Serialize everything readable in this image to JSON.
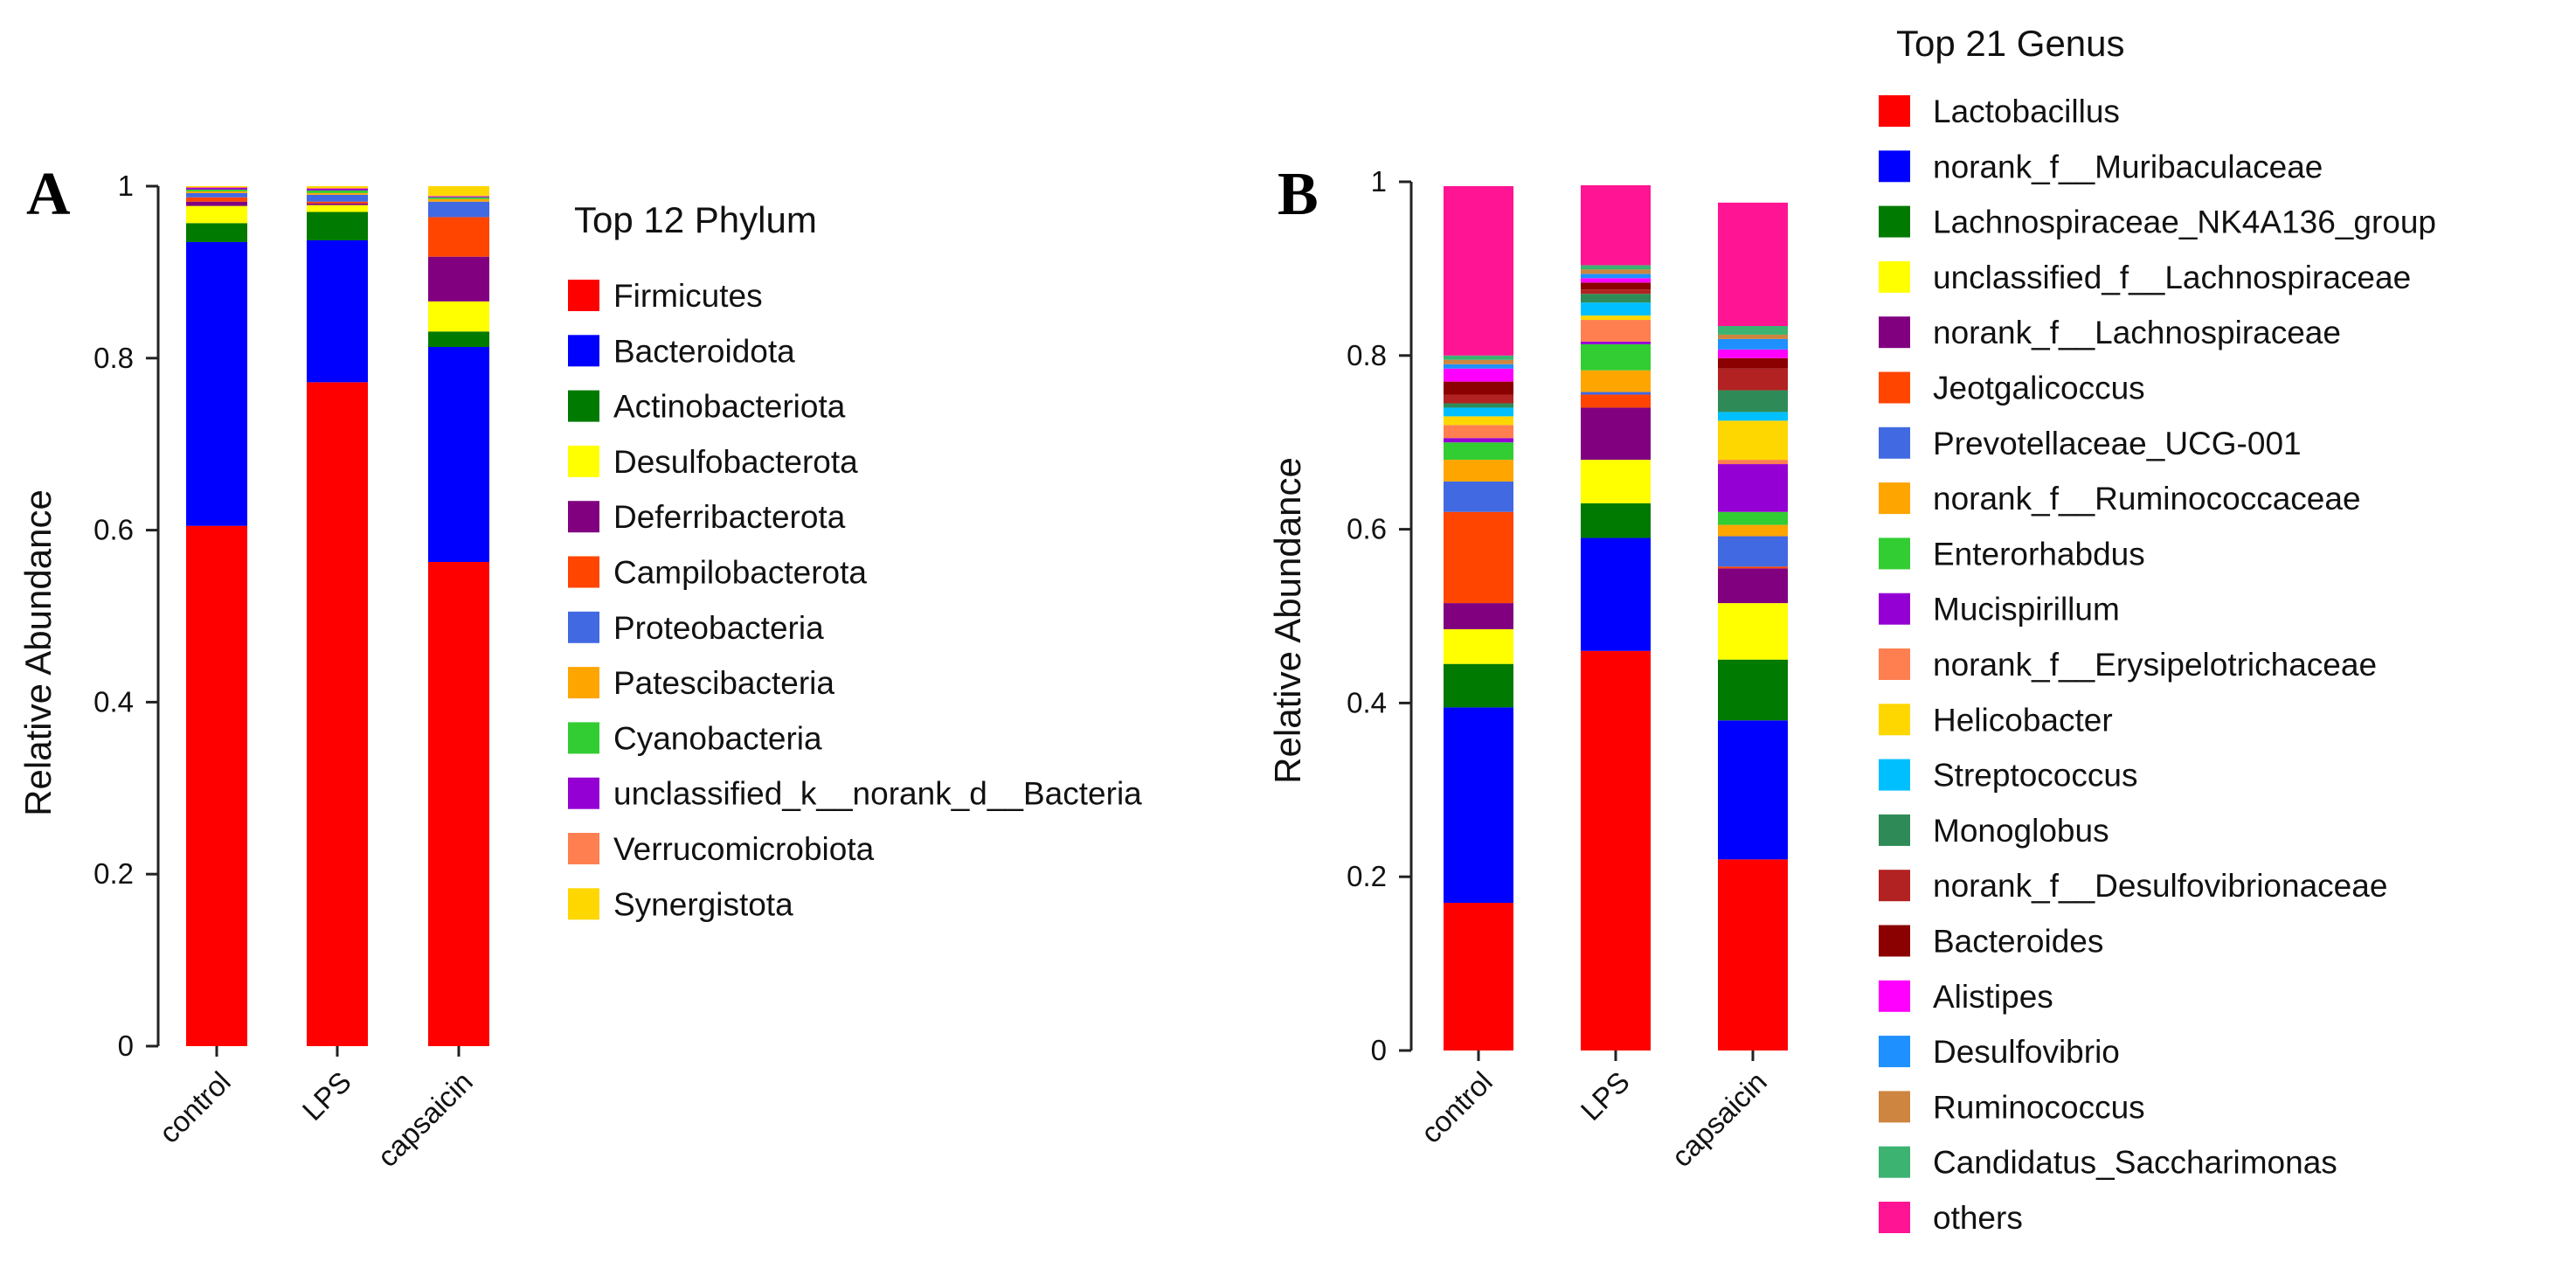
{
  "chart_data": [
    {
      "panel": "A",
      "type": "bar",
      "stacked": true,
      "title": "Top 12 Phylum",
      "xlabel": "",
      "ylabel": "Relative Abundance",
      "ylim": [
        0,
        1
      ],
      "yticks": [
        "0",
        "0.2",
        "0.4",
        "0.6",
        "0.8",
        "1"
      ],
      "categories": [
        "control",
        "LPS",
        "capsaicin"
      ],
      "series": [
        {
          "name": "Firmicutes",
          "color": "#FF0000",
          "values": [
            0.605,
            0.772,
            0.563
          ]
        },
        {
          "name": "Bacteroidota",
          "color": "#0000FF",
          "values": [
            0.33,
            0.165,
            0.25
          ]
        },
        {
          "name": "Actinobacteriota",
          "color": "#007A00",
          "values": [
            0.022,
            0.033,
            0.018
          ]
        },
        {
          "name": "Desulfobacterota",
          "color": "#FFFF00",
          "values": [
            0.02,
            0.008,
            0.035
          ]
        },
        {
          "name": "Deferribacterota",
          "color": "#800080",
          "values": [
            0.005,
            0.002,
            0.052
          ]
        },
        {
          "name": "Campilobacterota",
          "color": "#FF4500",
          "values": [
            0.005,
            0.002,
            0.046
          ]
        },
        {
          "name": "Proteobacteria",
          "color": "#4169E1",
          "values": [
            0.005,
            0.008,
            0.018
          ]
        },
        {
          "name": "Patescibacteria",
          "color": "#FFA500",
          "values": [
            0.002,
            0.002,
            0.003
          ]
        },
        {
          "name": "Cyanobacteria",
          "color": "#32CD32",
          "values": [
            0.002,
            0.003,
            0.002
          ]
        },
        {
          "name": "unclassified_k__norank_d__Bacteria",
          "color": "#9400D3",
          "values": [
            0.002,
            0.002,
            0.001
          ]
        },
        {
          "name": "Verrucomicrobiota",
          "color": "#FF7F50",
          "values": [
            0.001,
            0.001,
            0.001
          ]
        },
        {
          "name": "Synergistota",
          "color": "#FFD700",
          "values": [
            0.001,
            0.002,
            0.011
          ]
        }
      ]
    },
    {
      "panel": "B",
      "type": "bar",
      "stacked": true,
      "title": "Top 21 Genus",
      "xlabel": "",
      "ylabel": "Relative Abundance",
      "ylim": [
        0,
        1
      ],
      "yticks": [
        "0",
        "0.2",
        "0.4",
        "0.6",
        "0.8",
        "1"
      ],
      "categories": [
        "control",
        "LPS",
        "capsaicin"
      ],
      "series": [
        {
          "name": "Lactobacillus",
          "color": "#FF0000",
          "values": [
            0.17,
            0.46,
            0.22
          ]
        },
        {
          "name": "norank_f__Muribaculaceae",
          "color": "#0000FF",
          "values": [
            0.225,
            0.13,
            0.16
          ]
        },
        {
          "name": "Lachnospiraceae_NK4A136_group",
          "color": "#007A00",
          "values": [
            0.05,
            0.04,
            0.07
          ]
        },
        {
          "name": "unclassified_f__Lachnospiraceae",
          "color": "#FFFF00",
          "values": [
            0.04,
            0.05,
            0.065
          ]
        },
        {
          "name": "norank_f__Lachnospiraceae",
          "color": "#800080",
          "values": [
            0.03,
            0.06,
            0.04
          ]
        },
        {
          "name": "Jeotgalicoccus",
          "color": "#FF4500",
          "values": [
            0.105,
            0.015,
            0.002
          ]
        },
        {
          "name": "Prevotellaceae_UCG-001",
          "color": "#4169E1",
          "values": [
            0.035,
            0.003,
            0.035
          ]
        },
        {
          "name": "norank_f__Ruminococcaceae",
          "color": "#FFA500",
          "values": [
            0.025,
            0.025,
            0.013
          ]
        },
        {
          "name": "Enterorhabdus",
          "color": "#32CD32",
          "values": [
            0.02,
            0.03,
            0.015
          ]
        },
        {
          "name": "Mucispirillum",
          "color": "#9400D3",
          "values": [
            0.005,
            0.003,
            0.055
          ]
        },
        {
          "name": "norank_f__Erysipelotrichaceae",
          "color": "#FF7F50",
          "values": [
            0.015,
            0.025,
            0.005
          ]
        },
        {
          "name": "Helicobacter",
          "color": "#FFD700",
          "values": [
            0.01,
            0.005,
            0.045
          ]
        },
        {
          "name": "Streptococcus",
          "color": "#00BFFF",
          "values": [
            0.01,
            0.015,
            0.01
          ]
        },
        {
          "name": "Monoglobus",
          "color": "#2E8B57",
          "values": [
            0.005,
            0.01,
            0.025
          ]
        },
        {
          "name": "norank_f__Desulfovibrionaceae",
          "color": "#B22222",
          "values": [
            0.01,
            0.005,
            0.025
          ]
        },
        {
          "name": "Bacteroides",
          "color": "#8B0000",
          "values": [
            0.015,
            0.008,
            0.012
          ]
        },
        {
          "name": "Alistipes",
          "color": "#FF00FF",
          "values": [
            0.015,
            0.005,
            0.01
          ]
        },
        {
          "name": "Desulfovibrio",
          "color": "#1E90FF",
          "values": [
            0.005,
            0.005,
            0.012
          ]
        },
        {
          "name": "Ruminococcus",
          "color": "#CD853F",
          "values": [
            0.005,
            0.005,
            0.005
          ]
        },
        {
          "name": "Candidatus_Saccharimonas",
          "color": "#3CB371",
          "values": [
            0.005,
            0.005,
            0.01
          ]
        },
        {
          "name": "others",
          "color": "#FF1493",
          "values": [
            0.195,
            0.092,
            0.142
          ]
        }
      ]
    }
  ],
  "panel_labels": [
    "A",
    "B"
  ]
}
